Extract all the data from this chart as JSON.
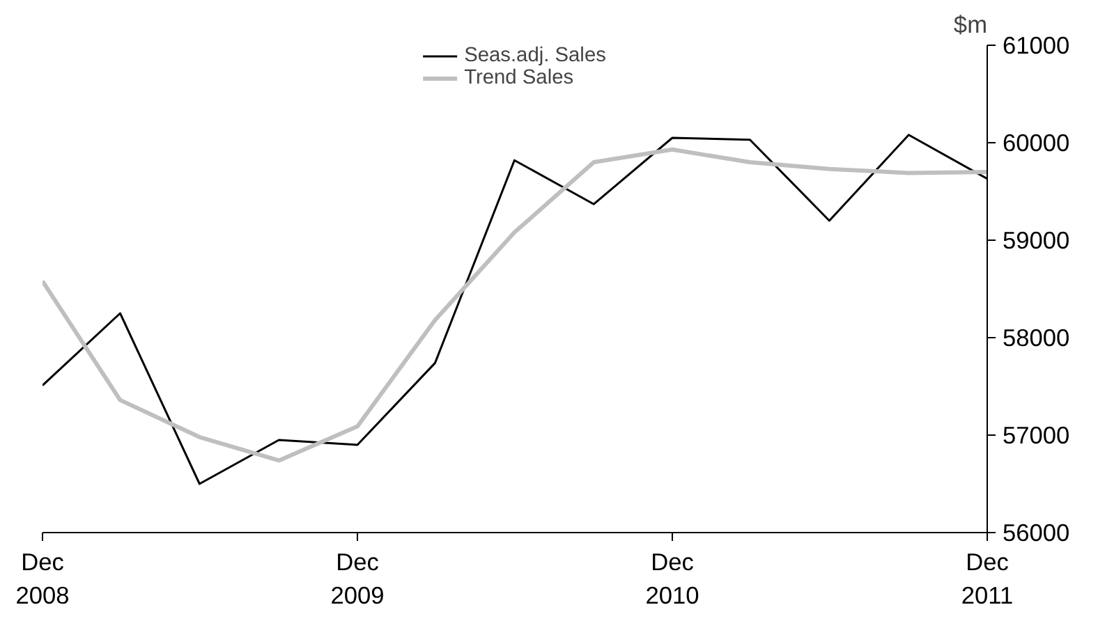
{
  "chart_data": {
    "type": "line",
    "ylabel": "$m",
    "x": [
      "2008-12",
      "2009-03",
      "2009-06",
      "2009-09",
      "2009-12",
      "2010-03",
      "2010-06",
      "2010-09",
      "2010-12",
      "2011-03",
      "2011-06",
      "2011-09",
      "2011-12"
    ],
    "series": [
      {
        "name": "Seas.adj. Sales",
        "color": "#000000",
        "values": [
          57510,
          58250,
          56500,
          56950,
          56900,
          57740,
          59820,
          59370,
          60050,
          60030,
          59200,
          60080,
          59630
        ]
      },
      {
        "name": "Trend Sales",
        "color": "#bfbfbf",
        "values": [
          58580,
          57360,
          56980,
          56740,
          57090,
          58180,
          59080,
          59800,
          59930,
          59800,
          59730,
          59690,
          59700
        ]
      }
    ],
    "xlim": [
      "2008-12",
      "2011-12"
    ],
    "xticks": [
      {
        "value": "2008-12",
        "label": "Dec\n2008"
      },
      {
        "value": "2009-12",
        "label": "Dec\n2009"
      },
      {
        "value": "2010-12",
        "label": "Dec\n2010"
      },
      {
        "value": "2011-12",
        "label": "Dec\n2011"
      }
    ],
    "ylim": [
      56000,
      61000
    ],
    "yticks": [
      56000,
      57000,
      58000,
      59000,
      60000,
      61000
    ],
    "grid": false,
    "legend": "top",
    "marker": "none",
    "line_style": "solid"
  }
}
